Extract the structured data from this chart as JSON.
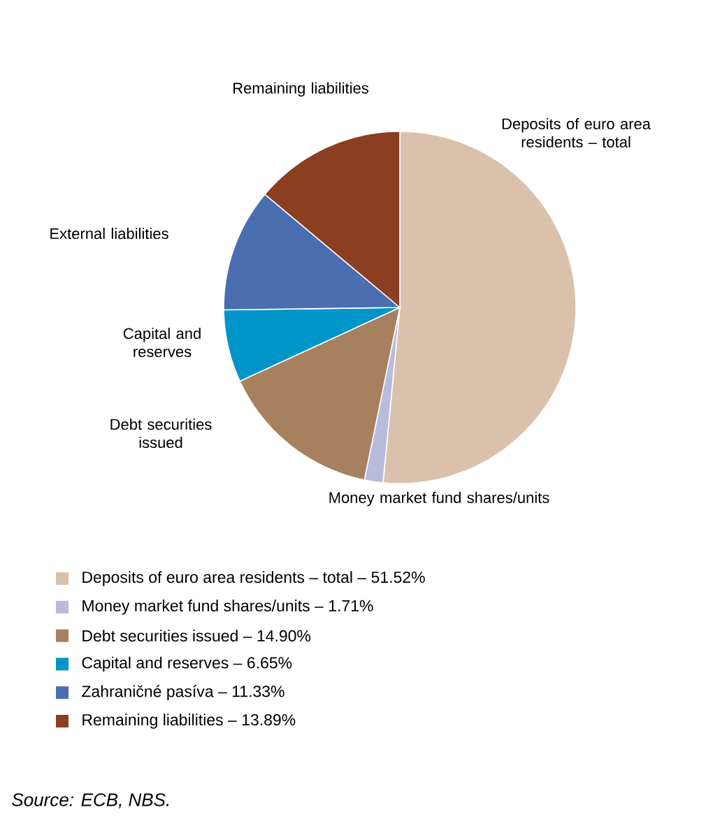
{
  "chart_data": {
    "type": "pie",
    "categories": [
      "Deposits of euro area residents – total – 51.52%",
      "Money market fund shares/units – 1.71%",
      "Debt securities issued – 14.90%",
      "Capital and reserves – 6.65%",
      "Zahraničné pasíva – 11.33%",
      "Remaining liabilities – 13.89%"
    ],
    "values": [
      51.52,
      1.71,
      14.9,
      6.65,
      11.33,
      13.89
    ],
    "colors": [
      "#d9c1ab",
      "#b8bbdc",
      "#a7805f",
      "#0095c8",
      "#4a6eb0",
      "#8b3e20"
    ],
    "legend": "bottom",
    "annotations": [
      "Deposits of euro area residents – total",
      "Money market fund shares/units",
      "Debt securities issued",
      "Capital and reserves",
      "External liabilities",
      "Remaining liabilities",
      "*Source: ECB, NBS.*"
    ]
  }
}
